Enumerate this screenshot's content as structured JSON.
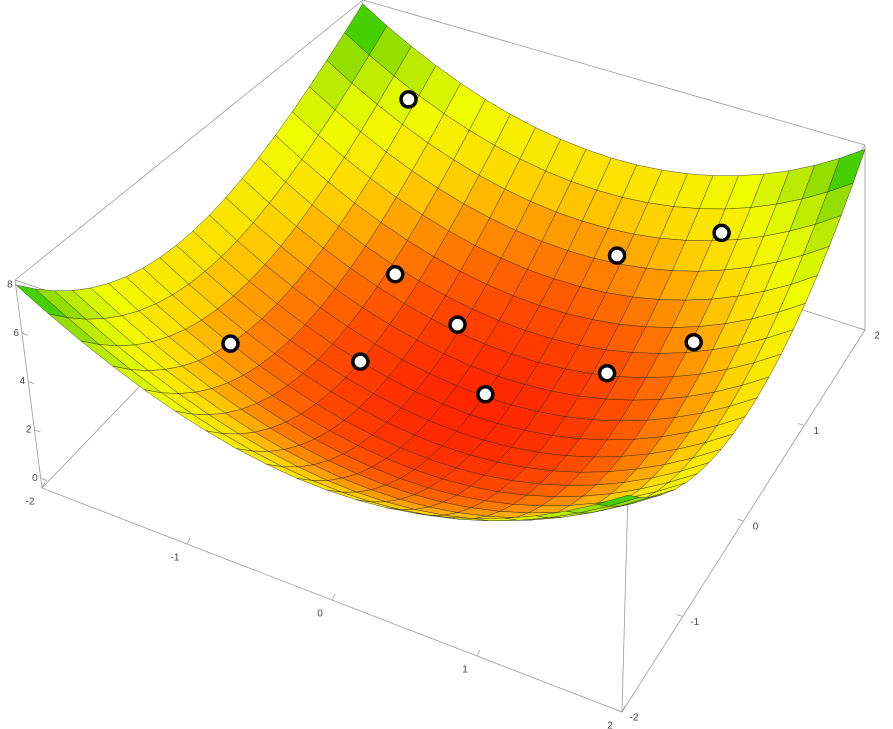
{
  "chart_data": {
    "type": "surface3d",
    "xlim": [
      -2,
      2
    ],
    "ylim": [
      -2,
      2
    ],
    "zlim": [
      -0.4,
      8.2
    ],
    "xticks": [
      -2,
      -1,
      0,
      1,
      2
    ],
    "yticks": [
      -2,
      -1,
      0,
      1,
      2
    ],
    "zticks": [
      0,
      2,
      4,
      6,
      8
    ],
    "points": {
      "x": [
        -1.45,
        -0.95,
        -0.43,
        0,
        -1.4,
        -0.8,
        0.7,
        0.35,
        1.05,
        1.22
      ],
      "y": [
        1.75,
        0.75,
        0.65,
        0.22,
        -0.6,
        0,
        0.62,
        1.45,
        1.65,
        0.88
      ],
      "z": [
        5.1,
        1.47,
        0.61,
        0.05,
        2.32,
        0.64,
        0.87,
        2.22,
        3.82,
        2.26
      ]
    }
  }
}
